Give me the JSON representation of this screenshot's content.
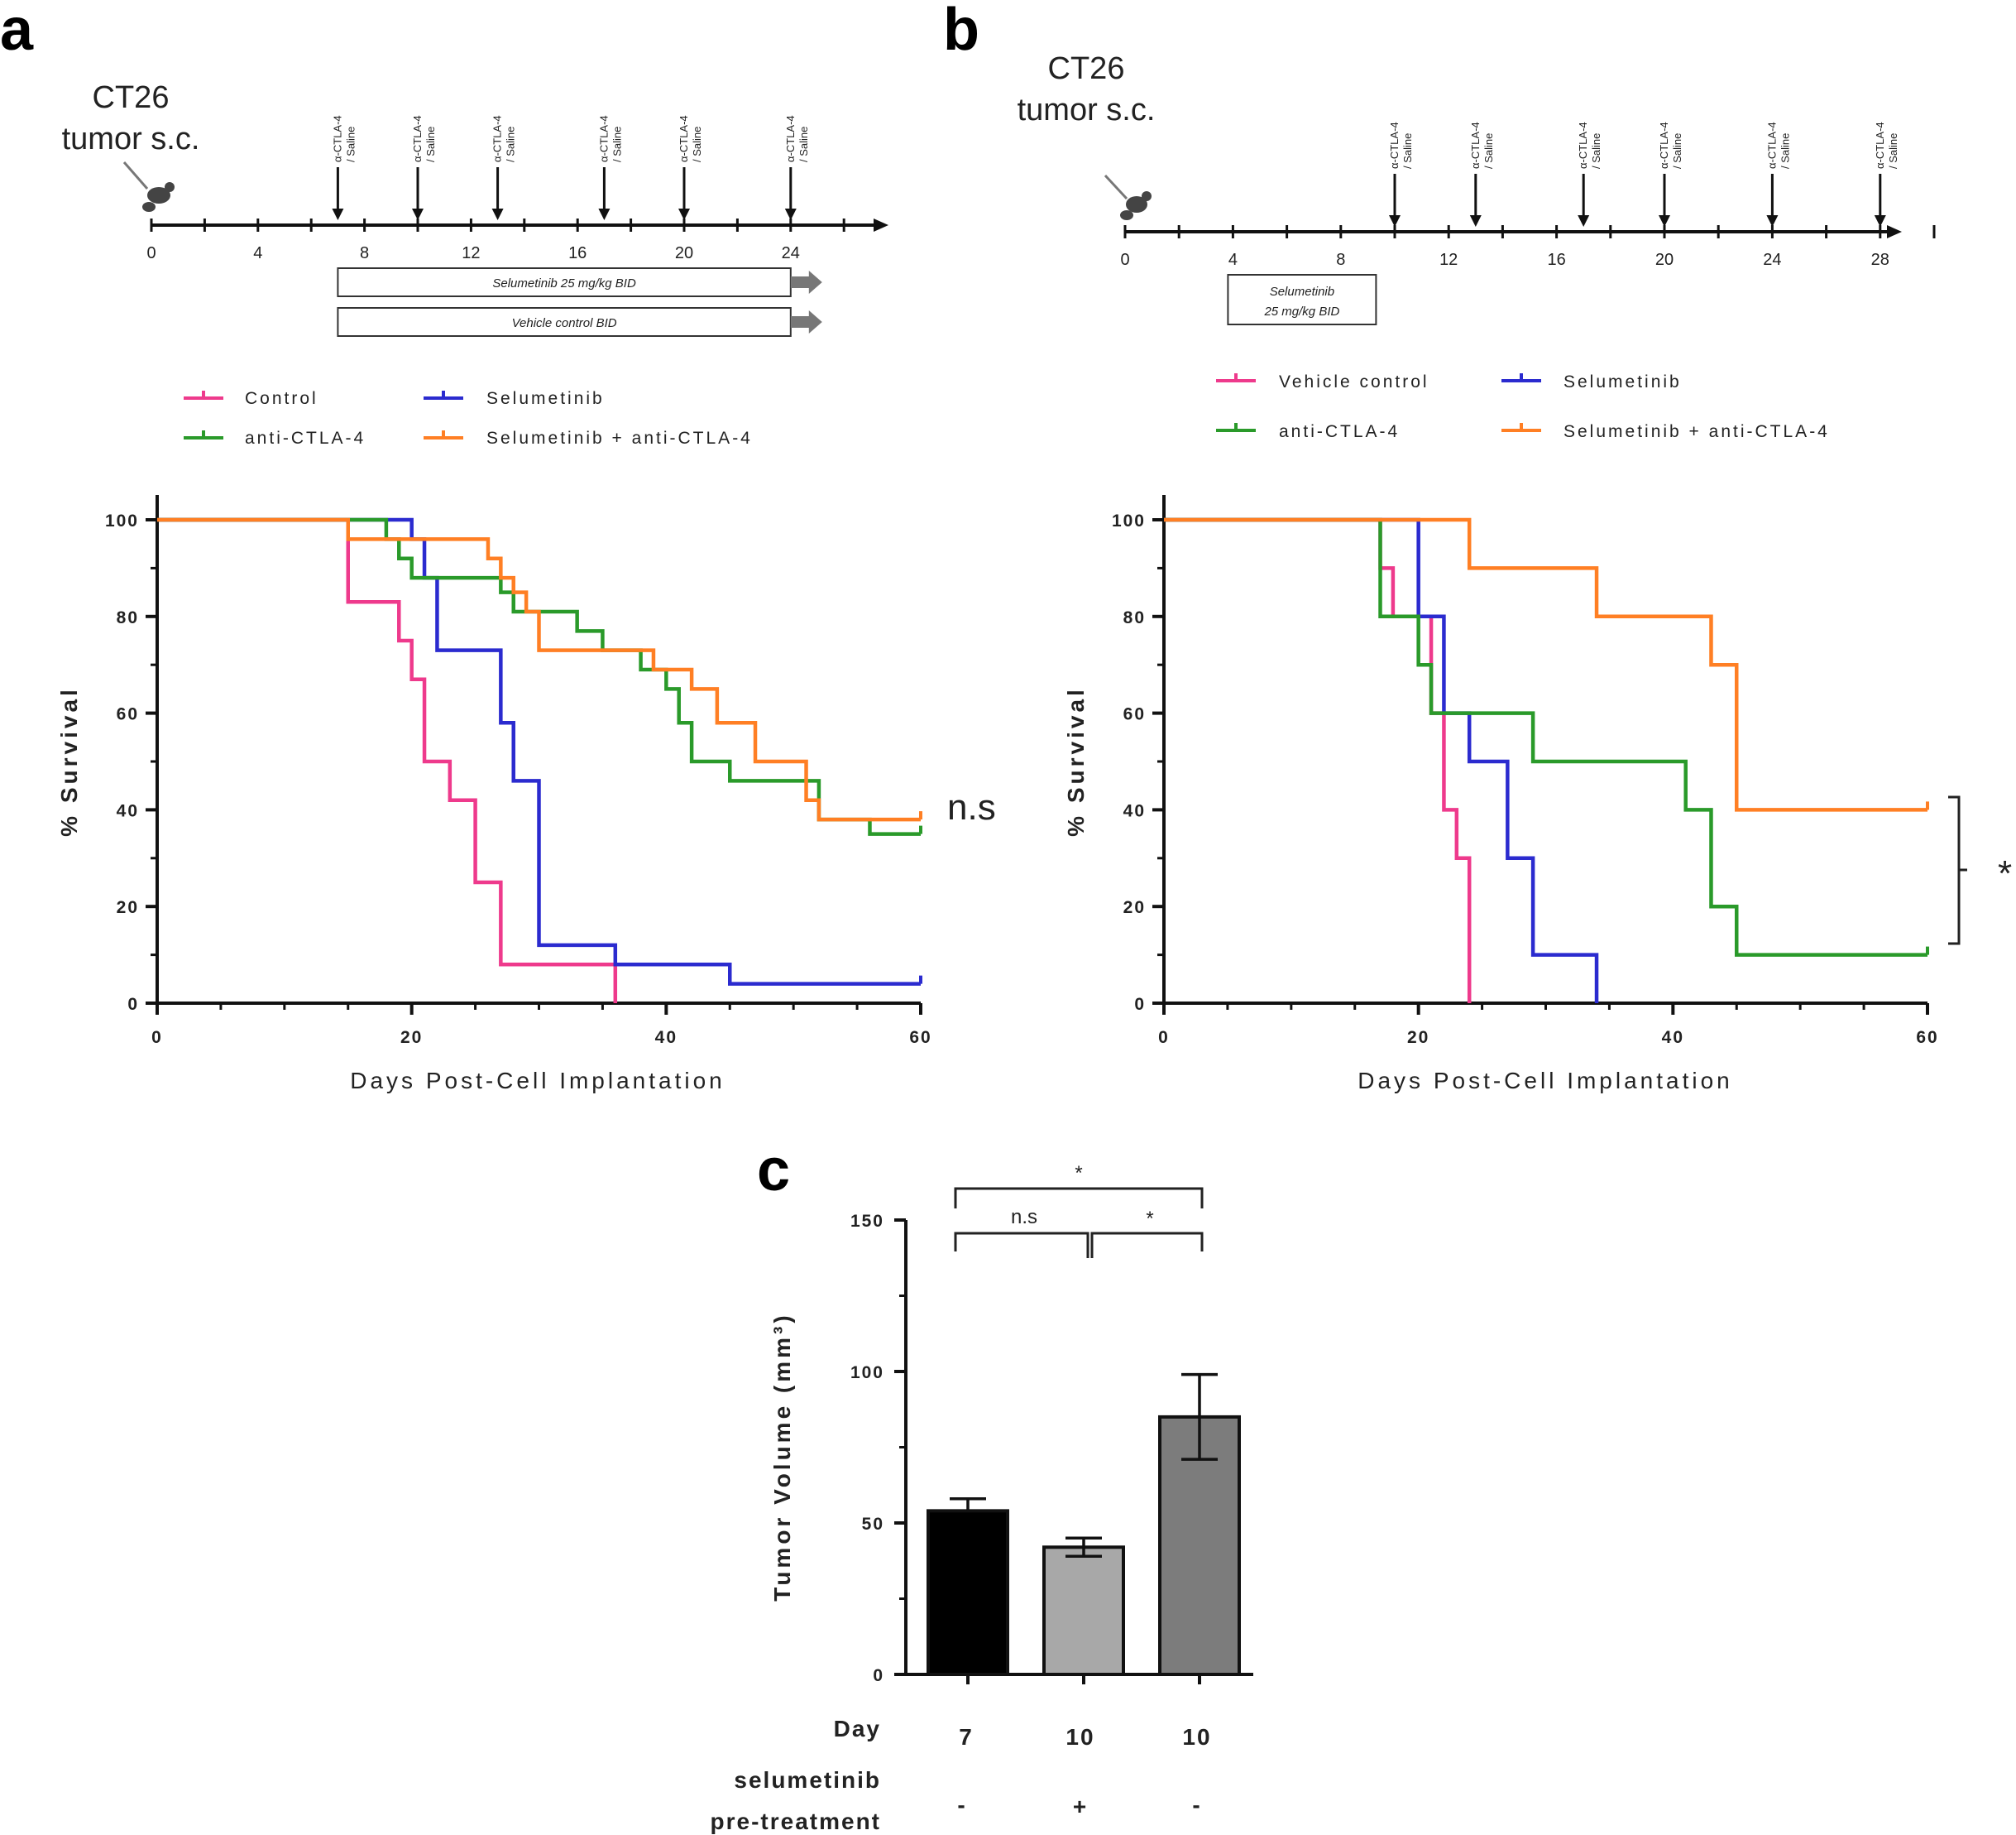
{
  "panels": {
    "a": {
      "letter": "a",
      "timeline": {
        "title_line1": "CT26",
        "title_line2": "tumor s.c.",
        "ticks": [
          "0",
          "4",
          "8",
          "12",
          "16",
          "20",
          "24"
        ],
        "dose_days": [
          7,
          10,
          13,
          17,
          20,
          24
        ],
        "dose_label_line1": "α-CTLA-4",
        "dose_label_line2": "/ Saline",
        "bars": [
          {
            "label": "Selumetinib 25 mg/kg BID",
            "start": 7,
            "end": 24
          },
          {
            "label": "Vehicle control BID",
            "start": 7,
            "end": 24
          }
        ]
      }
    },
    "b": {
      "letter": "b",
      "timeline": {
        "title_line1": "CT26",
        "title_line2": "tumor s.c.",
        "ticks": [
          "0",
          "4",
          "8",
          "12",
          "16",
          "20",
          "24",
          "28"
        ],
        "dose_days": [
          10,
          13,
          17,
          20,
          24,
          28
        ],
        "dose_label_line1": "α-CTLA-4",
        "dose_label_line2": "/ Saline",
        "box_line1": "Selumetinib",
        "box_line2": "25 mg/kg BID",
        "box_start": 4,
        "box_end": 9
      }
    },
    "c": {
      "letter": "c"
    }
  },
  "legend_a": [
    "Control",
    "Selumetinib",
    "anti-CTLA-4",
    "Selumetinib + anti-CTLA-4"
  ],
  "legend_b": [
    "Vehicle control",
    "Selumetinib",
    "anti-CTLA-4",
    "Selumetinib + anti-CTLA-4"
  ],
  "annotations": {
    "a_sig": "n.s",
    "b_sig": "*",
    "c_top": "*",
    "c_left": "n.s",
    "c_right": "*"
  },
  "table_c": {
    "rows": [
      "Day",
      "selumetinib",
      "pre-treatment"
    ],
    "day": [
      "7",
      "10",
      "10"
    ],
    "pretreatment": [
      "-",
      "+",
      "-"
    ]
  },
  "colors": {
    "control": "#ee3a8c",
    "selumetinib": "#2b2bcf",
    "anti_ctla4": "#2a9a2a",
    "combo": "#ff7f24",
    "bar_black": "#000000",
    "bar_lightgray": "#a8a8a8",
    "bar_gray": "#7c7c7c"
  },
  "chart_data": [
    {
      "type": "line",
      "step": true,
      "xlabel": "Days Post-Cell Implantation",
      "ylabel": "% Survival",
      "xlim": [
        0,
        60
      ],
      "ylim": [
        0,
        100
      ],
      "xticks": [
        0,
        20,
        40,
        60
      ],
      "yticks": [
        0,
        20,
        40,
        60,
        80,
        100
      ],
      "series": [
        {
          "name": "Control",
          "color": "#ee3a8c",
          "x": [
            0,
            15,
            15,
            18,
            19,
            20,
            21,
            23,
            25,
            27,
            36,
            36
          ],
          "y": [
            100,
            100,
            83,
            83,
            75,
            67,
            50,
            42,
            25,
            8,
            8,
            0
          ]
        },
        {
          "name": "Selumetinib",
          "color": "#2b2bcf",
          "x": [
            0,
            19,
            20,
            21,
            22,
            26,
            27,
            28,
            30,
            36,
            45,
            60
          ],
          "y": [
            100,
            100,
            96,
            88,
            73,
            73,
            58,
            46,
            12,
            8,
            4,
            4
          ]
        },
        {
          "name": "anti-CTLA-4",
          "color": "#2a9a2a",
          "x": [
            0,
            15,
            18,
            19,
            20,
            27,
            28,
            33,
            35,
            38,
            40,
            41,
            42,
            45,
            48,
            52,
            56,
            60
          ],
          "y": [
            100,
            100,
            96,
            92,
            88,
            85,
            81,
            77,
            73,
            69,
            65,
            58,
            50,
            46,
            46,
            38,
            35,
            35
          ]
        },
        {
          "name": "Selumetinib + anti-CTLA-4",
          "color": "#ff7f24",
          "x": [
            0,
            15,
            26,
            27,
            28,
            29,
            30,
            35,
            39,
            42,
            44,
            47,
            51,
            52,
            60
          ],
          "y": [
            100,
            96,
            92,
            88,
            85,
            81,
            73,
            73,
            69,
            65,
            58,
            50,
            42,
            38,
            38
          ]
        }
      ]
    },
    {
      "type": "line",
      "step": true,
      "xlabel": "Days Post-Cell Implantation",
      "ylabel": "% Survival",
      "xlim": [
        0,
        60
      ],
      "ylim": [
        0,
        100
      ],
      "xticks": [
        0,
        20,
        40,
        60
      ],
      "yticks": [
        0,
        20,
        40,
        60,
        80,
        100
      ],
      "series": [
        {
          "name": "Vehicle control",
          "color": "#ee3a8c",
          "x": [
            0,
            17,
            18,
            21,
            22,
            23,
            24
          ],
          "y": [
            100,
            90,
            80,
            60,
            40,
            30,
            0
          ]
        },
        {
          "name": "Selumetinib",
          "color": "#2b2bcf",
          "x": [
            0,
            20,
            22,
            24,
            27,
            29,
            34
          ],
          "y": [
            100,
            80,
            60,
            50,
            30,
            10,
            0
          ]
        },
        {
          "name": "anti-CTLA-4",
          "color": "#2a9a2a",
          "x": [
            0,
            17,
            20,
            21,
            29,
            41,
            43,
            45,
            60
          ],
          "y": [
            100,
            80,
            70,
            60,
            50,
            40,
            20,
            10,
            10
          ]
        },
        {
          "name": "Selumetinib + anti-CTLA-4",
          "color": "#ff7f24",
          "x": [
            0,
            24,
            34,
            43,
            45,
            60
          ],
          "y": [
            100,
            90,
            80,
            70,
            40,
            40
          ]
        }
      ]
    },
    {
      "type": "bar",
      "ylabel": "Tumor Volume (mm³)",
      "ylim": [
        0,
        150
      ],
      "yticks": [
        0,
        50,
        100,
        150
      ],
      "categories": [
        "7 / -",
        "10 / +",
        "10 / -"
      ],
      "values": [
        54,
        42,
        85
      ],
      "errors": [
        4,
        3,
        14
      ],
      "bar_colors": [
        "#000000",
        "#a8a8a8",
        "#7c7c7c"
      ]
    }
  ]
}
